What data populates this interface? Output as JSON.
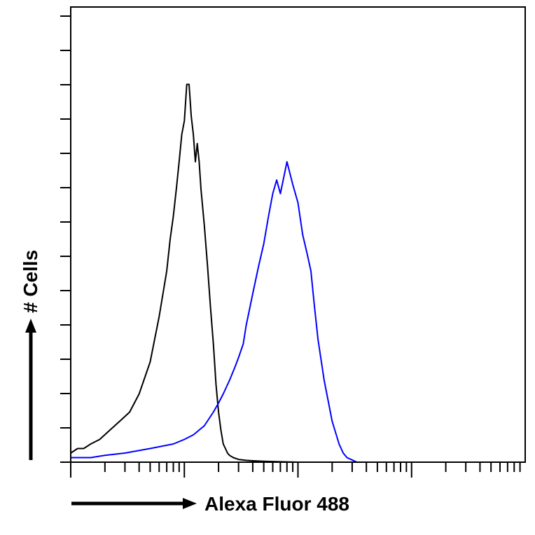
{
  "chart_data": {
    "type": "line",
    "title": "",
    "xlabel": "Alexa Fluor 488",
    "ylabel": "# Cells",
    "xscale": "log",
    "xlim": [
      1,
      10000
    ],
    "ylim": [
      0,
      100
    ],
    "grid": false,
    "legend": "none",
    "series": [
      {
        "color": "#000000",
        "x": [
          1,
          1.15,
          1.3,
          1.5,
          1.8,
          2.2,
          2.7,
          3.3,
          4,
          5,
          6,
          7,
          7.5,
          8,
          8.5,
          9,
          9.5,
          10,
          10.5,
          11,
          11.5,
          12,
          12.5,
          13,
          13.5,
          14,
          15,
          16,
          17,
          18,
          19,
          20,
          21,
          22,
          23,
          24,
          25,
          27,
          30,
          35,
          40,
          50,
          70,
          100
        ],
        "y": [
          2,
          3,
          3,
          4,
          5,
          7,
          9,
          11,
          15,
          22,
          32,
          42,
          49,
          54,
          60,
          66,
          72,
          75,
          83,
          83,
          76,
          72,
          66,
          70,
          66,
          60,
          52,
          43,
          34,
          26,
          17,
          11,
          7,
          4,
          3,
          2,
          1.5,
          1,
          0.6,
          0.4,
          0.3,
          0.2,
          0.1,
          0
        ]
      },
      {
        "color": "#0000ff",
        "x": [
          1,
          1.5,
          2,
          3,
          5,
          8,
          10,
          12,
          15,
          18,
          20,
          22,
          25,
          28,
          30,
          33,
          35,
          40,
          45,
          50,
          55,
          60,
          65,
          70,
          80,
          90,
          100,
          110,
          120,
          130,
          140,
          150,
          170,
          200,
          230,
          250,
          270,
          300,
          330
        ],
        "y": [
          1,
          1,
          1.5,
          2,
          3,
          4,
          5,
          6,
          8,
          11,
          13,
          15,
          18,
          21,
          23,
          26,
          30,
          37,
          43,
          48,
          54,
          59,
          62,
          59,
          66,
          61,
          57,
          50,
          46,
          42,
          34,
          27,
          18,
          9,
          4,
          2,
          1,
          0.5,
          0
        ]
      }
    ]
  }
}
